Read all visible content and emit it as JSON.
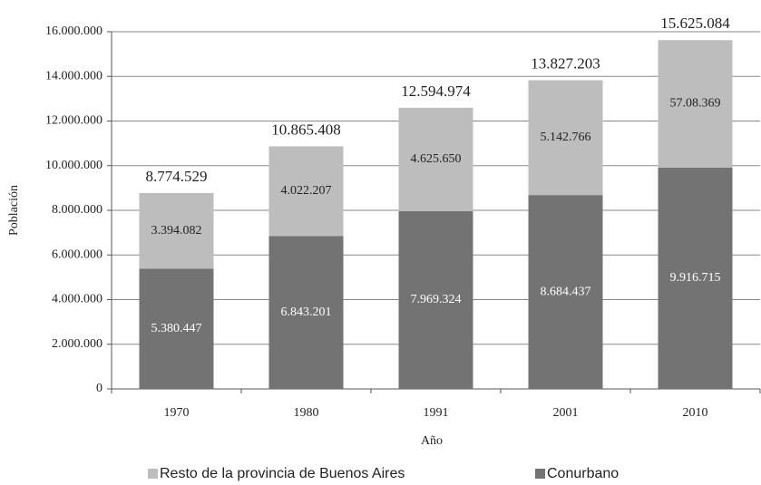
{
  "chart_data": {
    "type": "stacked_bar",
    "xlabel": "Año",
    "ylabel": "Población",
    "categories": [
      "1970",
      "1980",
      "1991",
      "2001",
      "2010"
    ],
    "series": [
      {
        "name": "Conurbano",
        "color": "#737373",
        "values": [
          5380447,
          6843201,
          7969324,
          8684437,
          9916715
        ],
        "value_labels": [
          "5.380.447",
          "6.843.201",
          "7.969.324",
          "8.684.437",
          "9.916.715"
        ]
      },
      {
        "name": "Resto de la provincia de Buenos Aires",
        "color": "#bdbdbd",
        "values": [
          3394082,
          4022207,
          4625650,
          5142766,
          5708369
        ],
        "value_labels": [
          "3.394.082",
          "4.022.207",
          "4.625.650",
          "5.142.766",
          "57.08.369"
        ]
      }
    ],
    "totals": [
      8774529,
      10865408,
      12594974,
      13827203,
      15625084
    ],
    "total_labels": [
      "8.774.529",
      "10.865.408",
      "12.594.974",
      "13.827.203",
      "15.625.084"
    ],
    "ylim": [
      0,
      16000000
    ],
    "yticks": [
      0,
      {
        "value": 2000000,
        "label": "2.000.000"
      },
      {
        "value": 4000000,
        "label": "4.000.000"
      },
      {
        "value": 6000000,
        "label": "6.000.000"
      },
      {
        "value": 8000000,
        "label": "8.000.000"
      },
      {
        "value": 10000000,
        "label": "10.000.000"
      },
      {
        "value": 12000000,
        "label": "12.000.000"
      },
      {
        "value": 14000000,
        "label": "14.000.000"
      },
      {
        "value": 16000000,
        "label": "16.000.000"
      }
    ],
    "grid": true,
    "legend": "bottom"
  }
}
